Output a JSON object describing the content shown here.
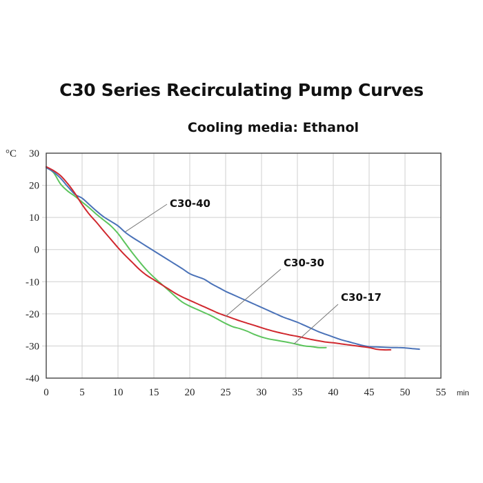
{
  "chart_data": {
    "type": "line",
    "title": "C30 Series Recirculating Pump Curves",
    "subtitle": "Cooling media: Ethanol",
    "xlabel": "min",
    "ylabel": "°C",
    "xlim": [
      0,
      55
    ],
    "ylim": [
      -40,
      30
    ],
    "x_ticks": [
      0,
      5,
      10,
      15,
      20,
      25,
      30,
      35,
      40,
      45,
      50,
      55
    ],
    "y_ticks": [
      30,
      20,
      10,
      0,
      -10,
      -20,
      -30,
      -40
    ],
    "grid": true,
    "legend": "none (inline annotations)",
    "series": [
      {
        "name": "C30-40",
        "color": "#4a72b8",
        "x": [
          0,
          1,
          2,
          3,
          4,
          5,
          6,
          7,
          8,
          9,
          10,
          11,
          12,
          13,
          14,
          15,
          16,
          17,
          18,
          19,
          20,
          21,
          22,
          23,
          24,
          25,
          26,
          27,
          28,
          29,
          30,
          31,
          32,
          33,
          34,
          35,
          36,
          37,
          38,
          39,
          40,
          41,
          42,
          43,
          44,
          45,
          46,
          47,
          48,
          49,
          50,
          51,
          52
        ],
        "y": [
          25.5,
          24.2,
          22.2,
          19.6,
          17.2,
          16,
          14,
          12,
          10.2,
          8.8,
          7.4,
          5.4,
          3.8,
          2.4,
          1,
          -0.4,
          -1.8,
          -3.2,
          -4.6,
          -6,
          -7.5,
          -8.4,
          -9.2,
          -10.6,
          -11.8,
          -13,
          -14,
          -15,
          -16,
          -17,
          -18,
          -19,
          -20,
          -21,
          -21.8,
          -22.6,
          -23.6,
          -24.6,
          -25.6,
          -26.4,
          -27.2,
          -28,
          -28.6,
          -29.2,
          -29.8,
          -30.2,
          -30.3,
          -30.4,
          -30.5,
          -30.5,
          -30.6,
          -30.8,
          -31
        ]
      },
      {
        "name": "C30-30",
        "color": "#d0282e",
        "x": [
          0,
          1,
          2,
          3,
          4,
          5,
          6,
          7,
          8,
          9,
          10,
          11,
          12,
          13,
          14,
          15,
          16,
          17,
          18,
          19,
          20,
          21,
          22,
          23,
          24,
          25,
          26,
          27,
          28,
          29,
          30,
          31,
          32,
          33,
          34,
          35,
          36,
          37,
          38,
          39,
          40,
          41,
          42,
          43,
          44,
          45,
          46,
          47,
          48
        ],
        "y": [
          25.8,
          24.6,
          23,
          20.5,
          17.5,
          14,
          11,
          8.5,
          5.8,
          3.2,
          0.6,
          -1.8,
          -4,
          -6.2,
          -8,
          -9.4,
          -10.8,
          -12.2,
          -13.6,
          -14.8,
          -15.8,
          -16.8,
          -17.8,
          -18.8,
          -19.8,
          -20.6,
          -21.4,
          -22.2,
          -22.9,
          -23.6,
          -24.3,
          -25,
          -25.6,
          -26.1,
          -26.6,
          -27,
          -27.5,
          -28,
          -28.4,
          -28.8,
          -29,
          -29.3,
          -29.6,
          -29.9,
          -30.2,
          -30.5,
          -31,
          -31.2,
          -31.2
        ]
      },
      {
        "name": "C30-17",
        "color": "#5cc45c",
        "x": [
          0,
          1,
          2,
          3,
          4,
          5,
          6,
          7,
          8,
          9,
          10,
          11,
          12,
          13,
          14,
          15,
          16,
          17,
          18,
          19,
          20,
          21,
          22,
          23,
          24,
          25,
          26,
          27,
          28,
          29,
          30,
          31,
          32,
          33,
          34,
          35,
          36,
          37,
          38,
          39
        ],
        "y": [
          25.5,
          24,
          20.4,
          18.2,
          16.6,
          14.8,
          13,
          11,
          9.2,
          7.4,
          5,
          2,
          -1,
          -3.8,
          -6.4,
          -8.6,
          -10.6,
          -12.6,
          -14.6,
          -16.4,
          -17.6,
          -18.6,
          -19.6,
          -20.6,
          -21.8,
          -23,
          -24,
          -24.6,
          -25.4,
          -26.4,
          -27.2,
          -27.8,
          -28.2,
          -28.6,
          -29,
          -29.5,
          -30,
          -30.2,
          -30.5,
          -30.5
        ]
      }
    ],
    "annotations": [
      {
        "text": "C30-40",
        "points_to": [
          11,
          5.5
        ]
      },
      {
        "text": "C30-30",
        "points_to": [
          25,
          -20.8
        ]
      },
      {
        "text": "C30-17",
        "points_to": [
          34.5,
          -29.4
        ]
      }
    ]
  }
}
